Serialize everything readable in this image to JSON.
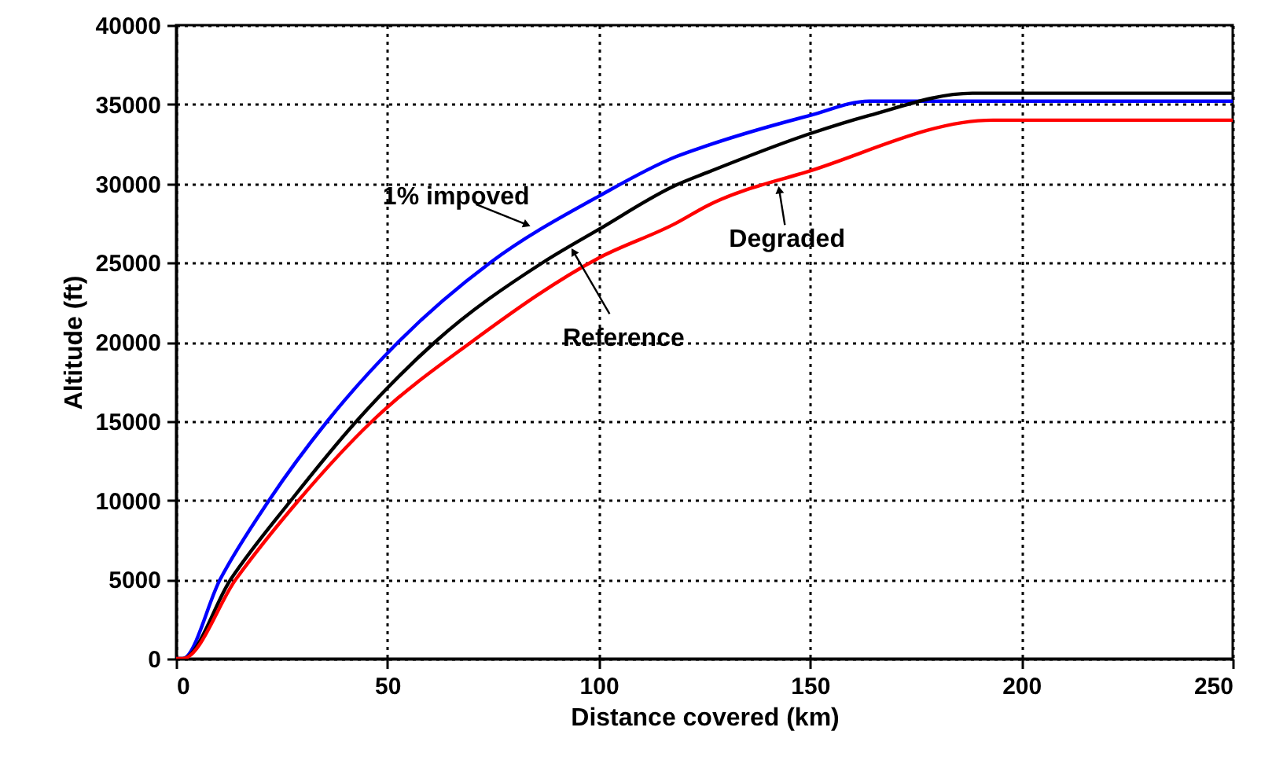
{
  "chart_data": {
    "type": "line",
    "xlabel": "Distance covered (km)",
    "ylabel": "Altitude (ft)",
    "xlim": [
      0,
      250
    ],
    "xticks": [
      0,
      50,
      100,
      150,
      200,
      250
    ],
    "ylim": [
      0,
      40000
    ],
    "yticks": [
      0,
      5000,
      10000,
      15000,
      20000,
      25000,
      30000,
      35000,
      40000
    ],
    "grid": true,
    "marker": "none",
    "line_style": "solid",
    "series": [
      {
        "color": "#0000ff",
        "x": [
          0,
          1.5,
          10.4,
          22,
          35.8,
          52.6,
          74.3,
          100,
          118.3,
          125.7,
          150,
          164,
          250
        ],
        "values": [
          0,
          0,
          5000,
          10000,
          15000,
          20000,
          25000,
          29200,
          31700,
          32400,
          34300,
          35200,
          35200
        ]
      },
      {
        "color": "#000000",
        "x": [
          0,
          1.5,
          12.9,
          27.2,
          42.7,
          61.3,
          86.7,
          100,
          118.3,
          125.7,
          150,
          164,
          188.4,
          250
        ],
        "values": [
          0,
          0,
          5000,
          10000,
          15000,
          20000,
          25000,
          27100,
          29900,
          30700,
          33150,
          34300,
          35700,
          35700
        ]
      },
      {
        "color": "#ff0000",
        "x": [
          0,
          1.5,
          14.1,
          29,
          46.4,
          69.9,
          100,
          118.3,
          125.7,
          150,
          193.3,
          250
        ],
        "values": [
          0,
          0,
          5000,
          10000,
          15000,
          20000,
          25300,
          27500,
          28600,
          30800,
          34000,
          34000
        ]
      }
    ],
    "annotations": [
      {
        "text": "1% impoved",
        "x": 83,
        "y": 27400
      },
      {
        "text": "Reference",
        "x": 94,
        "y": 25700
      },
      {
        "text": "Degraded",
        "x": 142.7,
        "y": 29600
      }
    ]
  }
}
